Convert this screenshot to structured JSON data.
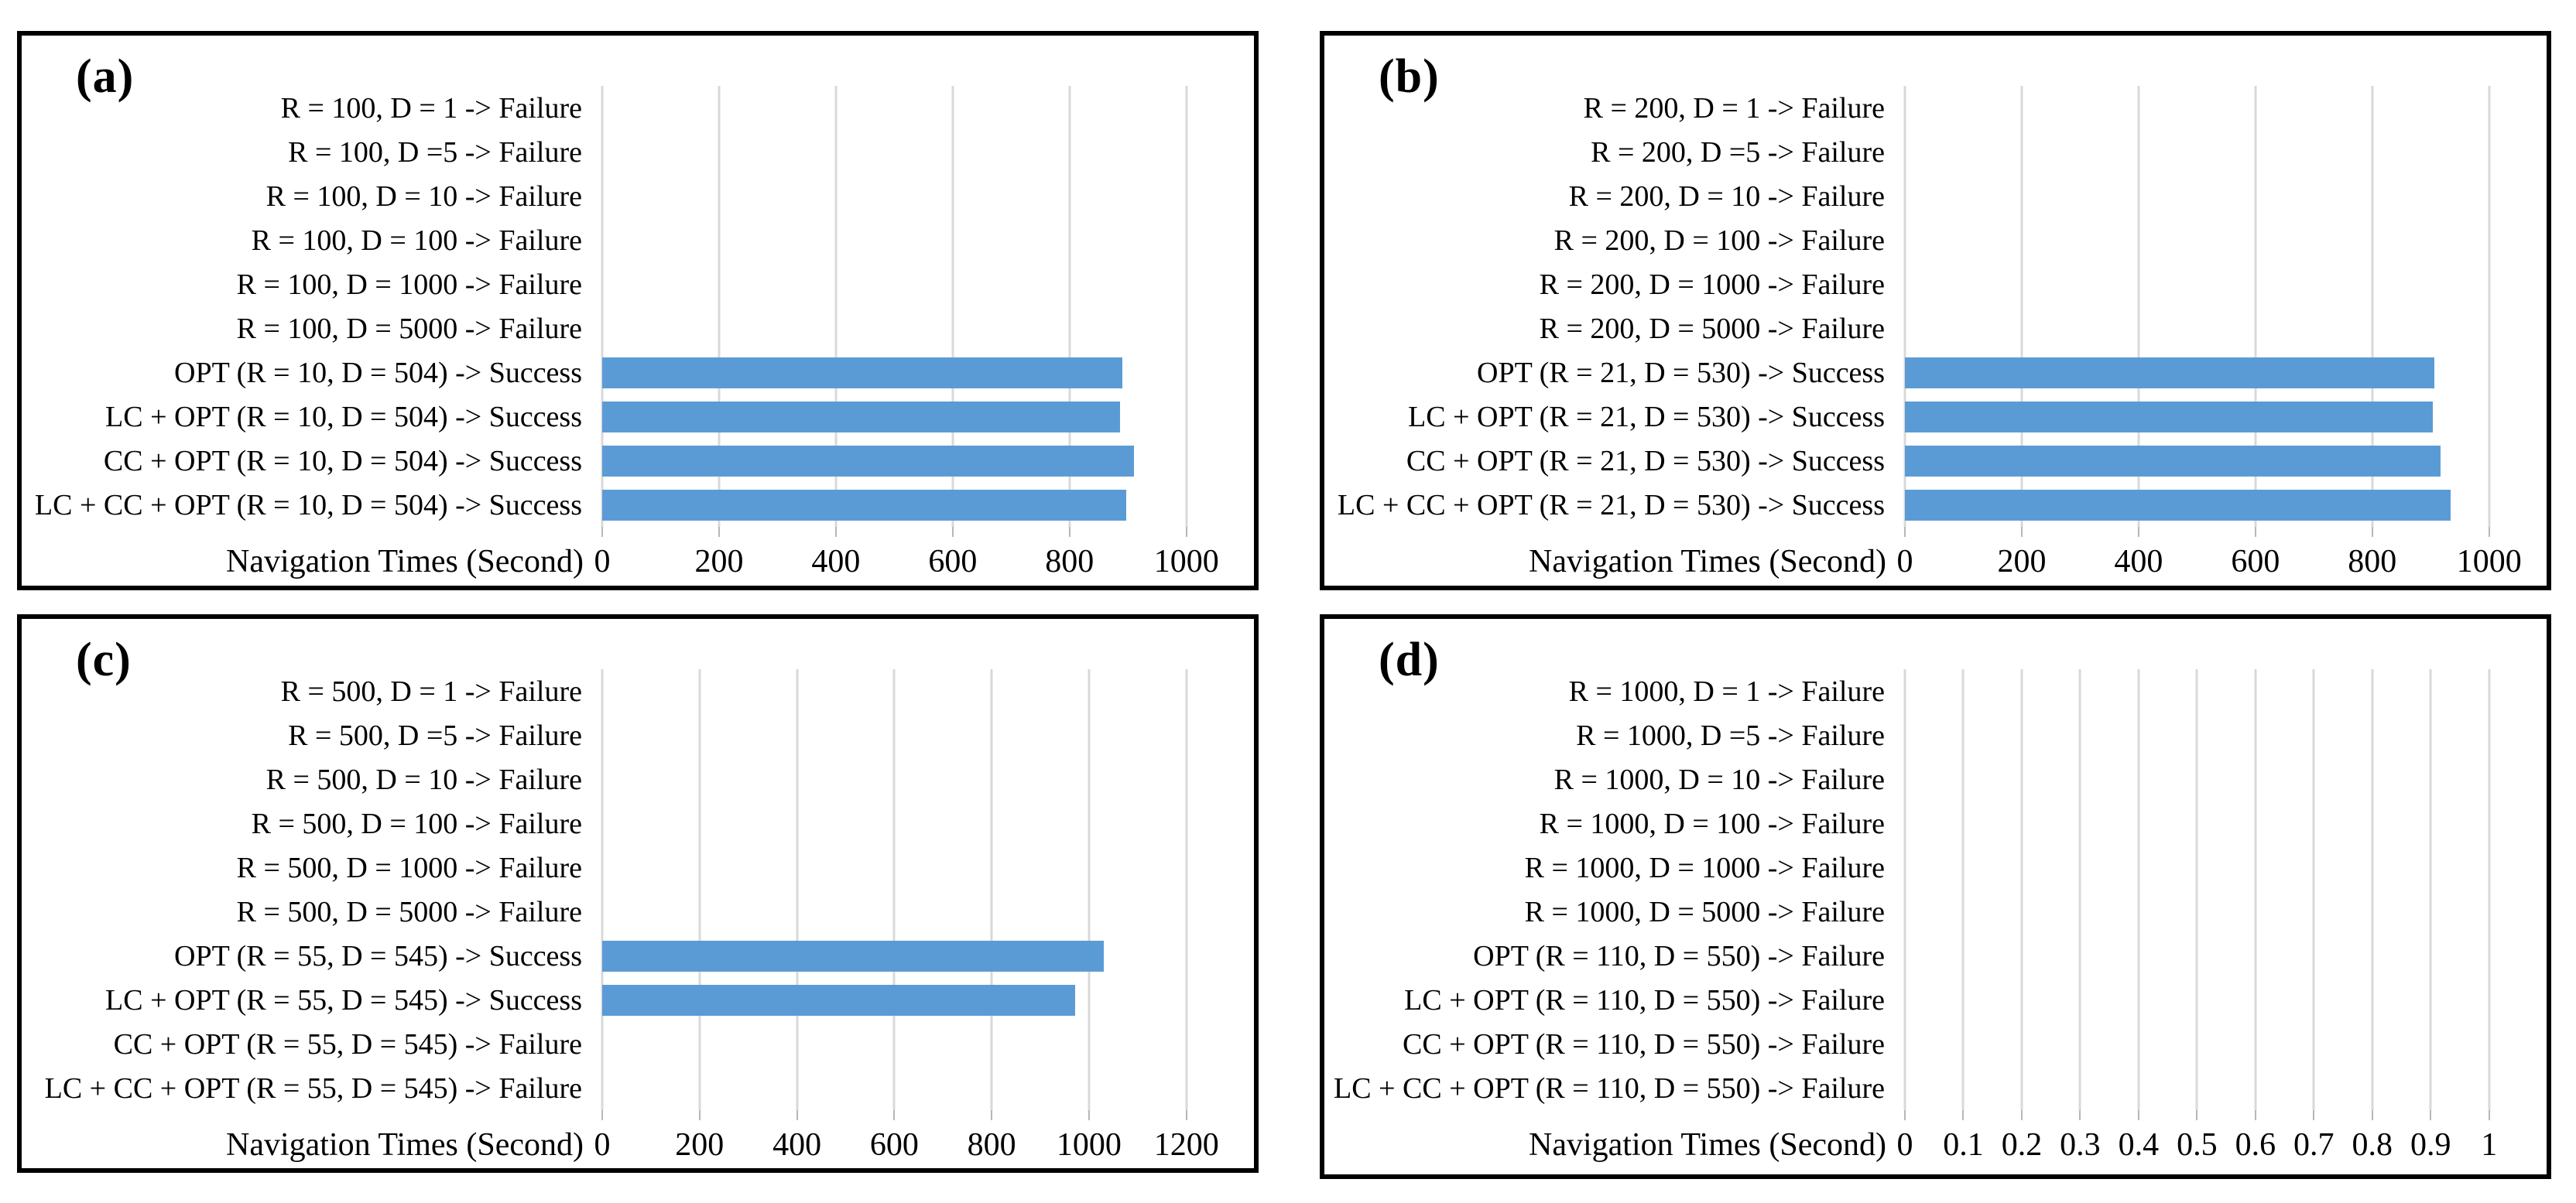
{
  "style": {
    "background": "#FFFFFF",
    "bar_color": "#5B9BD5",
    "gridline_color": "#D9D9D9",
    "tick_color": "#B7B7B7",
    "panel_border_color": "#000000",
    "text_color": "#000000"
  },
  "chart_data": [
    {
      "type": "bar",
      "orientation": "horizontal",
      "panel_label": "(a)",
      "xlabel": "Navigation Times (Second)",
      "categories": [
        "R = 100, D = 1 -> Failure",
        "R = 100, D =5 -> Failure",
        "R = 100, D = 10 -> Failure",
        "R = 100, D = 100 -> Failure",
        "R = 100, D = 1000 -> Failure",
        "R = 100, D = 5000 -> Failure",
        "OPT (R = 10, D = 504) -> Success",
        "LC + OPT (R = 10, D = 504) -> Success",
        "CC + OPT (R = 10, D = 504) -> Success",
        "LC + CC + OPT (R = 10, D = 504) -> Success"
      ],
      "values": [
        0,
        0,
        0,
        0,
        0,
        0,
        890,
        886,
        910,
        897
      ],
      "tick_values": [
        0,
        200,
        400,
        600,
        800,
        1000
      ],
      "tick_labels": [
        "0",
        "200",
        "400",
        "600",
        "800",
        "1000"
      ],
      "xlim": [
        0,
        1060
      ],
      "grid": "vertical"
    },
    {
      "type": "bar",
      "orientation": "horizontal",
      "panel_label": "(b)",
      "xlabel": "Navigation Times (Second)",
      "categories": [
        "R = 200, D = 1 -> Failure",
        "R = 200, D =5 -> Failure",
        "R = 200, D = 10 -> Failure",
        "R = 200, D = 100 -> Failure",
        "R = 200, D = 1000 -> Failure",
        "R = 200, D = 5000 -> Failure",
        "OPT (R = 21, D = 530) -> Success",
        "LC + OPT (R = 21, D = 530) -> Success",
        "CC + OPT (R = 21, D = 530) -> Success",
        "LC + CC + OPT (R = 21, D = 530) -> Success"
      ],
      "values": [
        0,
        0,
        0,
        0,
        0,
        0,
        906,
        904,
        917,
        934
      ],
      "tick_values": [
        0,
        200,
        400,
        600,
        800,
        1000
      ],
      "tick_labels": [
        "0",
        "200",
        "400",
        "600",
        "800",
        "1000"
      ],
      "xlim": [
        0,
        1060
      ],
      "grid": "vertical"
    },
    {
      "type": "bar",
      "orientation": "horizontal",
      "panel_label": "(c)",
      "xlabel": "Navigation Times (Second)",
      "categories": [
        "R = 500, D = 1 -> Failure",
        "R = 500, D =5 -> Failure",
        "R = 500, D = 10 -> Failure",
        "R = 500, D = 100 -> Failure",
        "R = 500, D = 1000 -> Failure",
        "R = 500, D = 5000 -> Failure",
        "OPT (R = 55, D = 545) -> Success",
        "LC + OPT (R = 55, D = 545) -> Success",
        "CC + OPT (R = 55, D = 545) -> Failure",
        "LC + CC + OPT (R = 55, D = 545) -> Failure"
      ],
      "values": [
        0,
        0,
        0,
        0,
        0,
        0,
        1031,
        971,
        0,
        0
      ],
      "tick_values": [
        0,
        200,
        400,
        600,
        800,
        1000,
        1200
      ],
      "tick_labels": [
        "0",
        "200",
        "400",
        "600",
        "800",
        "1000",
        "1200"
      ],
      "xlim": [
        0,
        1272
      ],
      "grid": "vertical"
    },
    {
      "type": "bar",
      "orientation": "horizontal",
      "panel_label": "(d)",
      "xlabel": "Navigation Times (Second)",
      "categories": [
        "R = 1000, D = 1 -> Failure",
        "R = 1000, D =5 -> Failure",
        "R = 1000, D = 10 -> Failure",
        "R = 1000, D = 100 -> Failure",
        "R = 1000, D = 1000 -> Failure",
        "R = 1000, D = 5000 -> Failure",
        "OPT (R = 110, D = 550) -> Failure",
        "LC + OPT (R = 110, D = 550) -> Failure",
        "CC + OPT (R = 110, D = 550) -> Failure",
        "LC + CC + OPT (R = 110, D = 550) -> Failure"
      ],
      "values": [
        0,
        0,
        0,
        0,
        0,
        0,
        0,
        0,
        0,
        0
      ],
      "tick_values": [
        0,
        0.1,
        0.2,
        0.3,
        0.4,
        0.5,
        0.6,
        0.7,
        0.8,
        0.9,
        1
      ],
      "tick_labels": [
        "0",
        "0.1",
        "0.2",
        "0.3",
        "0.4",
        "0.5",
        "0.6",
        "0.7",
        "0.8",
        "0.9",
        "1"
      ],
      "xlim": [
        0,
        1.06
      ],
      "grid": "vertical"
    }
  ]
}
